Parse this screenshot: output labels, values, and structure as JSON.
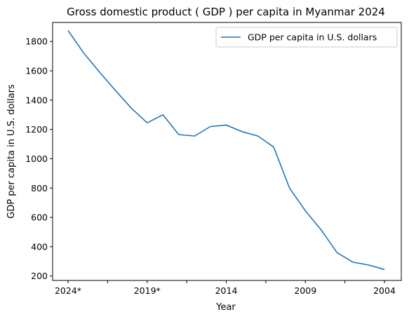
{
  "chart_data": {
    "type": "line",
    "title": "Gross domestic product ( GDP ) per capita in Myanmar 2024",
    "xlabel": "Year",
    "ylabel": "GDP per capita in U.S. dollars",
    "ylim": [
      170,
      1930
    ],
    "yticks": [
      200,
      400,
      600,
      800,
      1000,
      1200,
      1400,
      1600,
      1800
    ],
    "x": [
      "2024*",
      "2023*",
      "2022*",
      "2021*",
      "2020*",
      "2019*",
      "2018",
      "2017",
      "2016",
      "2015",
      "2014",
      "2013",
      "2012",
      "2011",
      "2010",
      "2009",
      "2008",
      "2007",
      "2006",
      "2005",
      "2004"
    ],
    "xtick_labels": [
      "2024*",
      "",
      "2019*",
      "",
      "2014",
      "",
      "2009",
      "",
      "2004"
    ],
    "series": [
      {
        "name": "GDP per capita in U.S. dollars",
        "color": "#1f77b4",
        "values": [
          1875,
          1720,
          1590,
          1465,
          1345,
          1245,
          1300,
          1165,
          1155,
          1220,
          1230,
          1185,
          1155,
          1080,
          800,
          645,
          515,
          360,
          295,
          275,
          245
        ]
      }
    ],
    "legend": "top-right",
    "grid": false
  }
}
